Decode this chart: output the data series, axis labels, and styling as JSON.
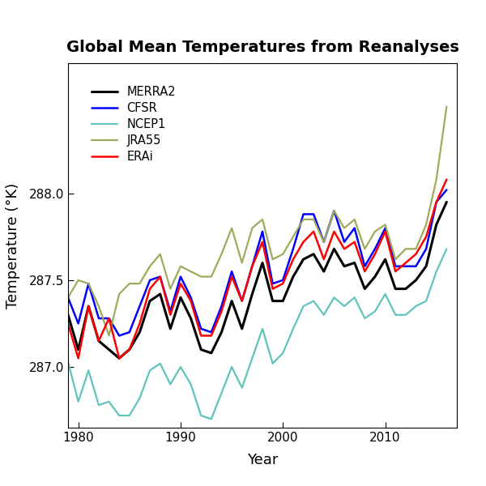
{
  "title": "Global Mean Temperatures from Reanalyses",
  "xlabel": "Year",
  "ylabel": "Temperature (°K)",
  "xlim": [
    1979,
    2017
  ],
  "ylim": [
    286.65,
    288.75
  ],
  "yticks": [
    287.0,
    287.5,
    288.0
  ],
  "xticks": [
    1980,
    1990,
    2000,
    2010
  ],
  "years": [
    1979,
    1980,
    1981,
    1982,
    1983,
    1984,
    1985,
    1986,
    1987,
    1988,
    1989,
    1990,
    1991,
    1992,
    1993,
    1994,
    1995,
    1996,
    1997,
    1998,
    1999,
    2000,
    2001,
    2002,
    2003,
    2004,
    2005,
    2006,
    2007,
    2008,
    2009,
    2010,
    2011,
    2012,
    2013,
    2014,
    2015,
    2016
  ],
  "MERRA2": [
    287.3,
    287.1,
    287.35,
    287.15,
    287.1,
    287.05,
    287.1,
    287.2,
    287.38,
    287.42,
    287.22,
    287.4,
    287.28,
    287.1,
    287.08,
    287.2,
    287.38,
    287.22,
    287.42,
    287.6,
    287.38,
    287.38,
    287.52,
    287.62,
    287.65,
    287.55,
    287.68,
    287.58,
    287.6,
    287.45,
    287.52,
    287.62,
    287.45,
    287.45,
    287.5,
    287.58,
    287.82,
    287.95
  ],
  "CFSR": [
    287.4,
    287.25,
    287.48,
    287.28,
    287.28,
    287.18,
    287.2,
    287.35,
    287.5,
    287.52,
    287.32,
    287.52,
    287.4,
    287.22,
    287.2,
    287.35,
    287.55,
    287.38,
    287.58,
    287.78,
    287.48,
    287.5,
    287.68,
    287.88,
    287.88,
    287.72,
    287.9,
    287.72,
    287.8,
    287.58,
    287.68,
    287.8,
    287.58,
    287.58,
    287.58,
    287.68,
    287.95,
    288.02
  ],
  "NCEP1": [
    287.03,
    286.8,
    286.98,
    286.78,
    286.8,
    286.72,
    286.72,
    286.82,
    286.98,
    287.02,
    286.9,
    287.0,
    286.9,
    286.72,
    286.7,
    286.85,
    287.0,
    286.88,
    287.05,
    287.22,
    287.02,
    287.08,
    287.22,
    287.35,
    287.38,
    287.3,
    287.4,
    287.35,
    287.4,
    287.28,
    287.32,
    287.42,
    287.3,
    287.3,
    287.35,
    287.38,
    287.55,
    287.68
  ],
  "JRA55": [
    287.4,
    287.5,
    287.48,
    287.35,
    287.18,
    287.42,
    287.48,
    287.48,
    287.58,
    287.65,
    287.45,
    287.58,
    287.55,
    287.52,
    287.52,
    287.65,
    287.8,
    287.6,
    287.8,
    287.85,
    287.62,
    287.65,
    287.75,
    287.85,
    287.85,
    287.72,
    287.9,
    287.8,
    287.85,
    287.68,
    287.78,
    287.82,
    287.62,
    287.68,
    287.68,
    287.82,
    288.08,
    288.5
  ],
  "ERAi": [
    287.25,
    287.05,
    287.35,
    287.15,
    287.28,
    287.05,
    287.1,
    287.25,
    287.45,
    287.52,
    287.3,
    287.48,
    287.38,
    287.18,
    287.18,
    287.32,
    287.52,
    287.38,
    287.58,
    287.72,
    287.45,
    287.48,
    287.62,
    287.72,
    287.78,
    287.62,
    287.78,
    287.68,
    287.72,
    287.55,
    287.65,
    287.78,
    287.55,
    287.6,
    287.65,
    287.75,
    287.95,
    288.08
  ],
  "colors": {
    "MERRA2": "#000000",
    "CFSR": "#0000FF",
    "NCEP1": "#5FC4BC",
    "JRA55": "#9DAB5A",
    "ERAi": "#FF0000"
  },
  "linewidths": {
    "MERRA2": 2.2,
    "CFSR": 1.8,
    "NCEP1": 1.6,
    "JRA55": 1.6,
    "ERAi": 1.8
  }
}
